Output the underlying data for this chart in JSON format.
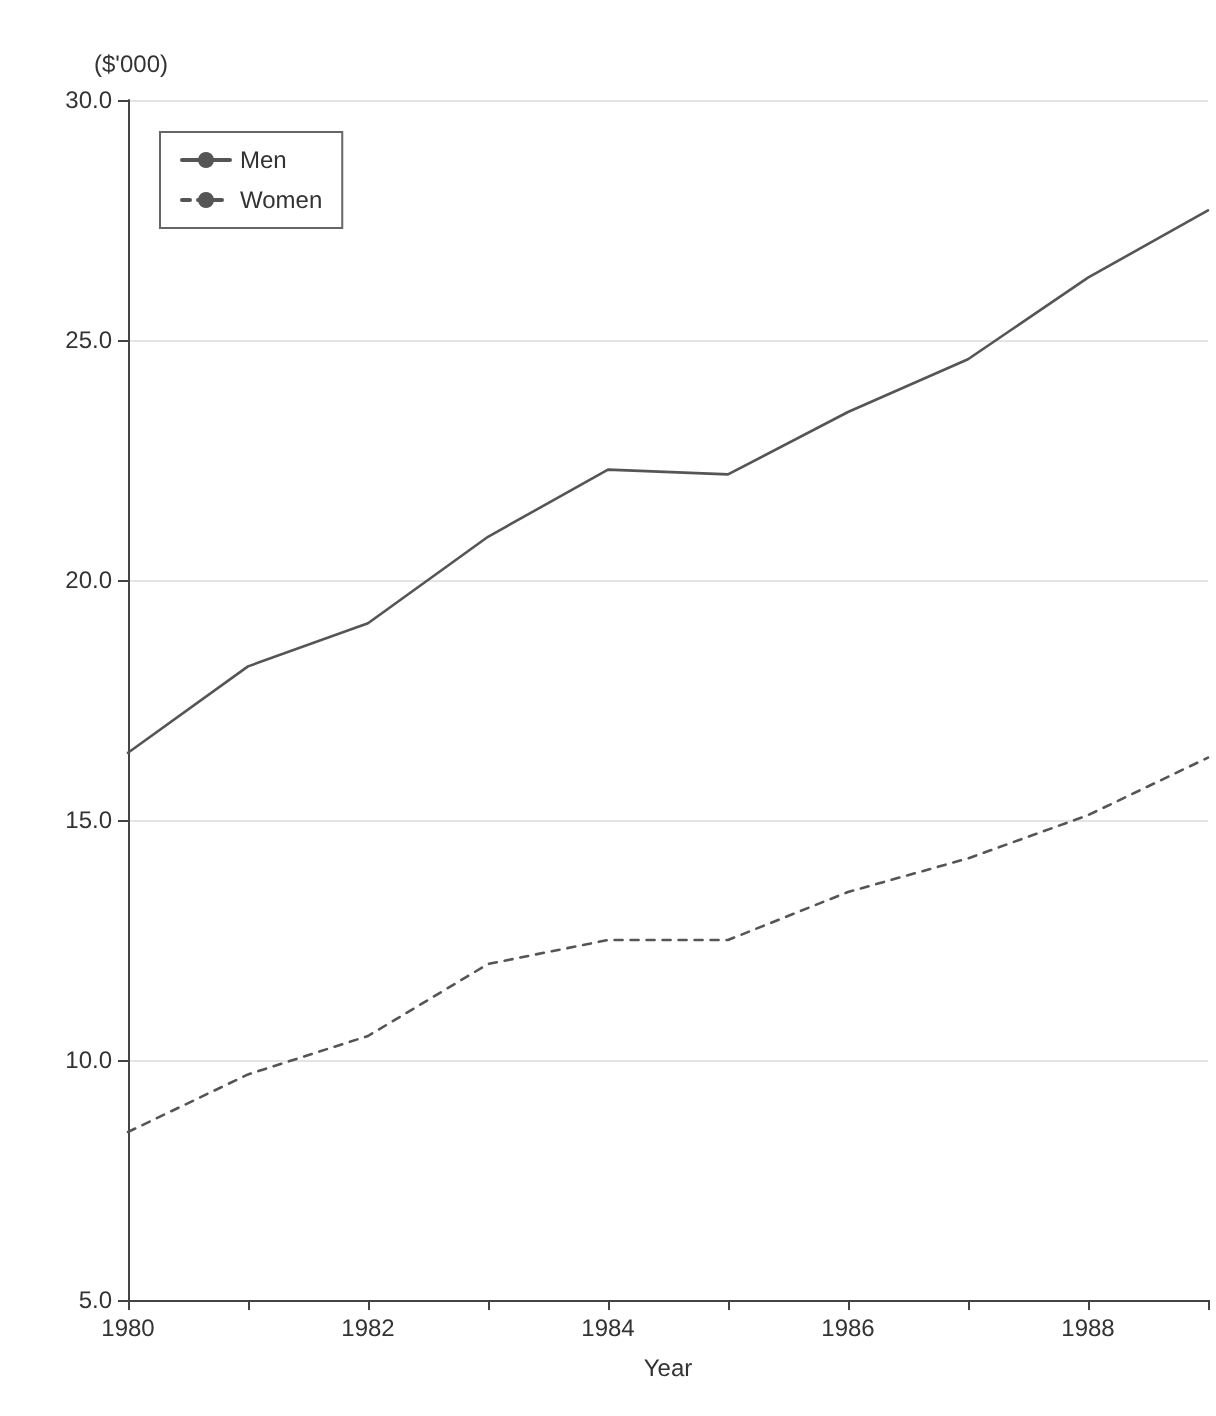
{
  "chart_data": {
    "type": "line",
    "xlabel": "Year",
    "ylabel": "($'000)",
    "x": [
      1980,
      1981,
      1982,
      1983,
      1984,
      1985,
      1986,
      1987,
      1988,
      1989
    ],
    "series": [
      {
        "name": "Men",
        "color": "#555555",
        "line_style": "solid",
        "values": [
          16.4,
          18.2,
          19.1,
          20.9,
          22.3,
          22.2,
          23.5,
          24.6,
          26.3,
          27.7
        ]
      },
      {
        "name": "Women",
        "color": "#555555",
        "line_style": "dashed",
        "values": [
          8.5,
          9.7,
          10.5,
          12.0,
          12.5,
          12.5,
          13.5,
          14.2,
          15.1,
          16.3
        ]
      }
    ],
    "xlim": [
      1980,
      1989
    ],
    "xticks": [
      1980,
      {
        "value": 1981,
        "label": null
      },
      1982,
      {
        "value": 1983,
        "label": null
      },
      1984,
      {
        "value": 1985,
        "label": null
      },
      1986,
      {
        "value": 1987,
        "label": null
      },
      1988,
      {
        "value": 1989,
        "label": null
      }
    ],
    "ylim": [
      5,
      30
    ],
    "yticks": [
      {
        "value": 5,
        "label": "5.0"
      },
      {
        "value": 10,
        "label": "10.0"
      },
      {
        "value": 15,
        "label": "15.0"
      },
      {
        "value": 20,
        "label": "20.0"
      },
      {
        "value": 25,
        "label": "25.0"
      },
      {
        "value": 30,
        "label": "30.0"
      }
    ],
    "grid": "y",
    "legend": "top left",
    "marker": "none"
  }
}
